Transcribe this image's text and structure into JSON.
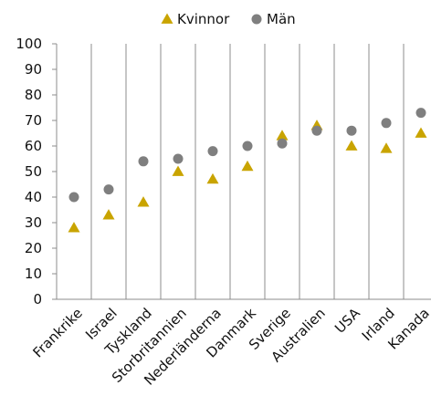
{
  "chart_data": {
    "type": "scatter",
    "categories": [
      "Frankrike",
      "Israel",
      "Tyskland",
      "Storbritannien",
      "Nederländerna",
      "Danmark",
      "Sverige",
      "Australien",
      "USA",
      "Irland",
      "Kanada"
    ],
    "series": [
      {
        "name": "Kvinnor",
        "marker": "triangle",
        "color": "#C9A400",
        "values": [
          28,
          33,
          38,
          50,
          47,
          52,
          64,
          68,
          60,
          59,
          65
        ]
      },
      {
        "name": "Män",
        "marker": "circle",
        "color": "#7F7F7F",
        "values": [
          40,
          43,
          54,
          55,
          58,
          60,
          61,
          66,
          66,
          69,
          73
        ]
      }
    ],
    "title": "",
    "xlabel": "",
    "ylabel": "",
    "ylim": [
      0,
      100
    ],
    "yticks": [
      0,
      10,
      20,
      30,
      40,
      50,
      60,
      70,
      80,
      90,
      100
    ],
    "grid": "vertical",
    "legend_position": "top"
  }
}
